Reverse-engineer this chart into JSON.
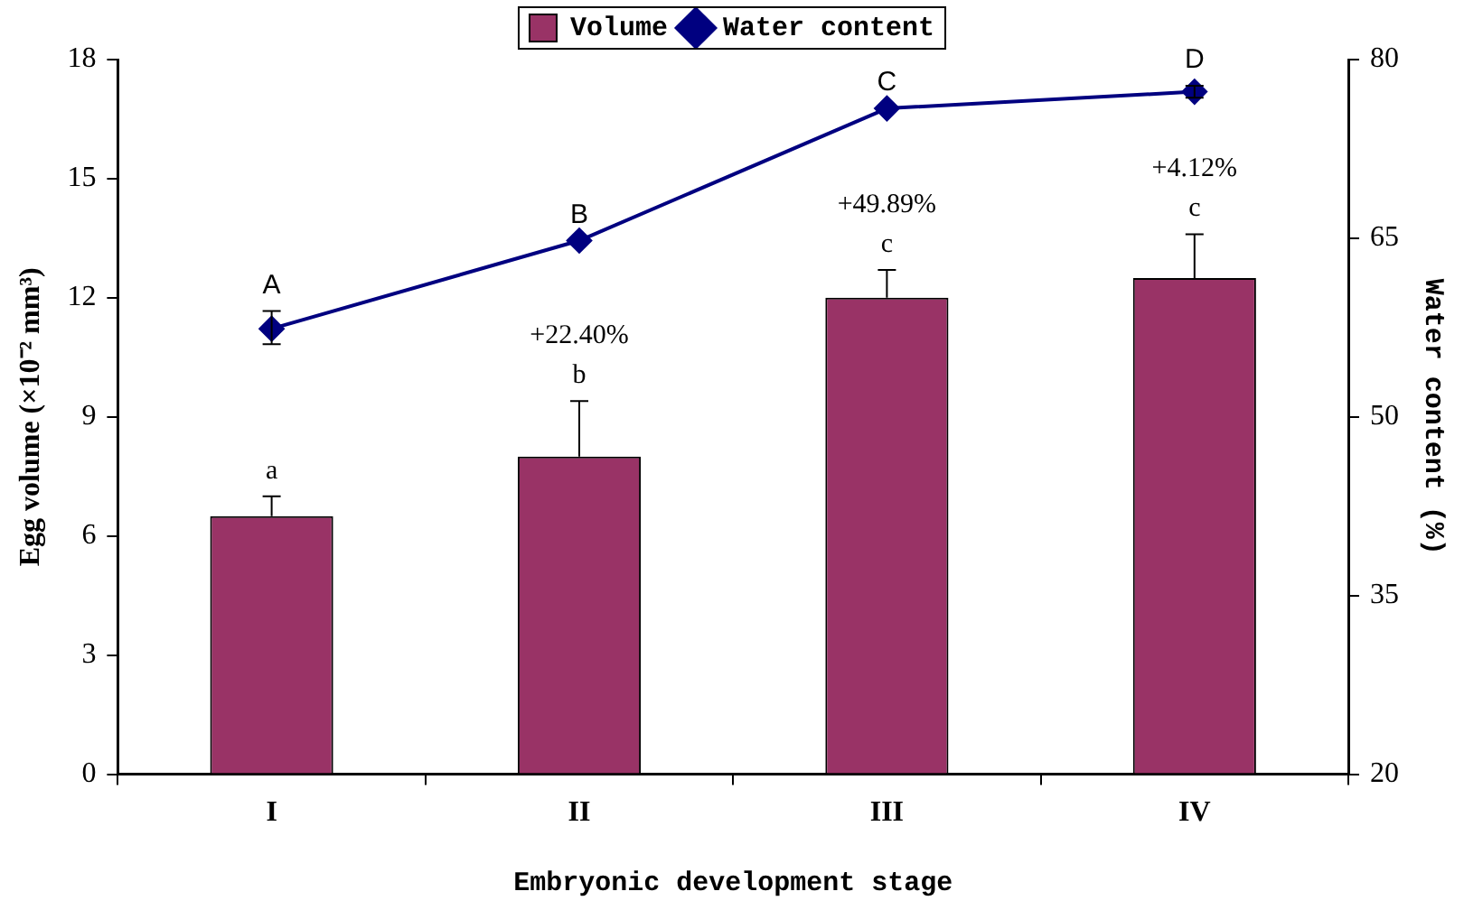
{
  "chart_data": {
    "type": "bar",
    "categories": [
      "I",
      "II",
      "III",
      "IV"
    ],
    "xlabel": "Embryonic development stage",
    "ylabel": "Egg volume (×10⁻² mm³)",
    "y2label": "Water content (%)",
    "series": [
      {
        "name": "Volume",
        "color": "#993366",
        "values": [
          6.5,
          8.0,
          12.0,
          12.5
        ],
        "errors": [
          [
            6.5,
            7.0
          ],
          [
            8.0,
            9.4
          ],
          [
            12.0,
            12.7
          ],
          [
            12.5,
            13.6
          ]
        ]
      },
      {
        "name": "Water content",
        "type": "line",
        "axis": "y2",
        "color": "#000080",
        "values": [
          57.4,
          64.8,
          75.9,
          77.3
        ],
        "errors": [
          [
            56.1,
            58.9
          ],
          null,
          null,
          [
            76.8,
            77.8
          ]
        ]
      }
    ],
    "ylim": [
      0,
      18
    ],
    "yticks": [
      0,
      3,
      6,
      9,
      12,
      15,
      18
    ],
    "y2lim": [
      20,
      80
    ],
    "y2ticks": [
      20,
      35,
      50,
      65,
      80
    ],
    "legend": "top",
    "grid": false,
    "marker": "diamond",
    "line_style": "solid",
    "annotations": [
      {
        "text": "a",
        "x": "I",
        "y": 7.0
      },
      {
        "text": "b",
        "x": "II",
        "y": 9.4
      },
      {
        "text": "c",
        "x": "III",
        "y": 12.7
      },
      {
        "text": "c",
        "x": "IV",
        "y": 13.6
      },
      {
        "text": "+22.40%",
        "x": "II",
        "y": 9.4
      },
      {
        "text": "+49.89%",
        "x": "III",
        "y": 12.7
      },
      {
        "text": "+4.12%",
        "x": "IV",
        "y": 13.6
      },
      "A",
      "B",
      "C",
      "D"
    ]
  }
}
